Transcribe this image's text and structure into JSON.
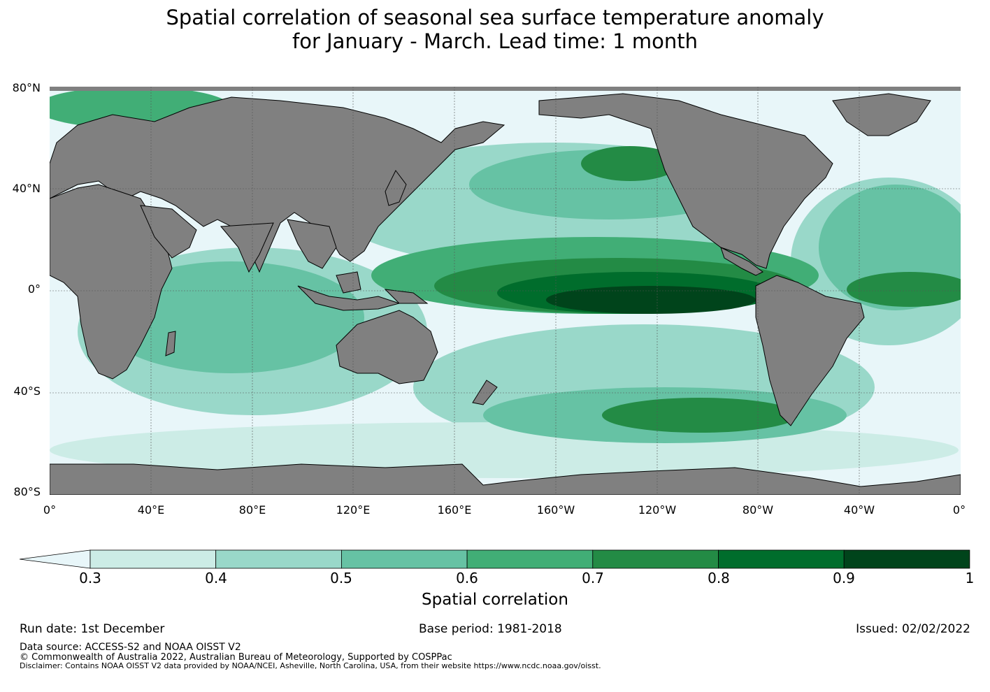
{
  "title_line1": "Spatial correlation of seasonal sea surface temperature anomaly",
  "title_line2": "for January - March. Lead time: 1 month",
  "lat_labels": [
    "80°N",
    "40°N",
    "0°",
    "40°S",
    "80°S"
  ],
  "lon_labels": [
    "0°",
    "40°E",
    "80°E",
    "120°E",
    "160°E",
    "160°W",
    "120°W",
    "80°W",
    "40°W",
    "0°"
  ],
  "colorbar": {
    "ticks": [
      "0.3",
      "0.4",
      "0.5",
      "0.6",
      "0.7",
      "0.8",
      "0.9",
      "1"
    ],
    "colors": [
      "#e8f6f9",
      "#ccece6",
      "#99d8c9",
      "#66c2a4",
      "#41ae76",
      "#238b45",
      "#006d2c",
      "#00441b"
    ],
    "label": "Spatial correlation"
  },
  "map_colors": {
    "land": "#808080",
    "low": "#e8f6f9"
  },
  "footer": {
    "run_date": "Run date: 1st December",
    "base_period": "Base period: 1981-2018",
    "issued": "Issued: 02/02/2022",
    "data_source": "Data source: ACCESS-S2 and NOAA OISST V2",
    "copyright": "© Commonwealth of Australia 2022, Australian Bureau of Meteorology, Supported by COSPPac",
    "disclaimer": "Disclaimer: Contains NOAA OISST V2 data provided by NOAA/NCEI, Asheville, North Carolina, USA, from their website https://www.ncdc.noaa.gov/oisst."
  }
}
